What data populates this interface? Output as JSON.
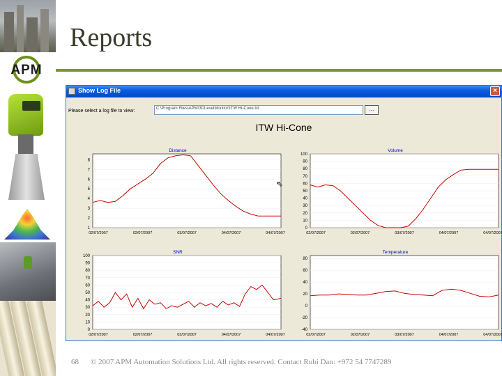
{
  "slide": {
    "title": "Reports",
    "page_number": "68",
    "footer": "© 2007 APM Automation Solutions Ltd. All rights reserved. Contact Rubi Dan: +972 54 7747289",
    "logo_text": "APM",
    "accent_color": "#7a9a25"
  },
  "window": {
    "title": "Show Log File",
    "prompt": "Please select a log file to view:",
    "file_path": "C:\\Program Files\\APM\\3DLevelMonitor\\ITW Hi-Cone.txt",
    "browse_label": "...",
    "close_label": "×",
    "chart_heading": "ITW Hi-Cone"
  },
  "chart_data": [
    {
      "type": "line",
      "title": "Distance",
      "color": "#cc0000",
      "x_ticks": [
        "02/07/2007",
        "02/07/2007",
        "03/07/2007",
        "04/07/2007",
        "04/07/2007"
      ],
      "y_ticks": [
        "1",
        "2",
        "3",
        "4",
        "5",
        "6",
        "7",
        "8"
      ],
      "ylim": [
        1,
        8.6
      ],
      "x": [
        0,
        0.04,
        0.08,
        0.12,
        0.16,
        0.2,
        0.24,
        0.28,
        0.32,
        0.36,
        0.4,
        0.44,
        0.48,
        0.52,
        0.56,
        0.6,
        0.64,
        0.68,
        0.72,
        0.76,
        0.8,
        0.84,
        0.88,
        0.92,
        0.96,
        1.0
      ],
      "y": [
        3.6,
        3.8,
        3.6,
        3.7,
        4.3,
        5.0,
        5.5,
        6.0,
        6.6,
        7.6,
        8.2,
        8.4,
        8.5,
        8.4,
        7.4,
        6.4,
        5.4,
        4.5,
        3.8,
        3.2,
        2.7,
        2.4,
        2.2,
        2.2,
        2.2,
        2.2
      ]
    },
    {
      "type": "line",
      "title": "Volume",
      "color": "#cc0000",
      "x_ticks": [
        "02/07/2007",
        "02/07/2007",
        "03/07/2007",
        "04/07/2007",
        "04/07/2007"
      ],
      "y_ticks": [
        "0",
        "10",
        "20",
        "30",
        "40",
        "50",
        "60",
        "70",
        "80",
        "90",
        "100"
      ],
      "ylim": [
        0,
        100
      ],
      "x": [
        0,
        0.04,
        0.08,
        0.12,
        0.16,
        0.2,
        0.24,
        0.28,
        0.32,
        0.36,
        0.4,
        0.44,
        0.48,
        0.52,
        0.56,
        0.6,
        0.64,
        0.68,
        0.72,
        0.76,
        0.8,
        0.84,
        0.88,
        0.92,
        0.96,
        1.0
      ],
      "y": [
        58,
        55,
        58,
        57,
        50,
        40,
        30,
        20,
        10,
        3,
        0,
        0,
        0,
        2,
        12,
        25,
        40,
        55,
        65,
        72,
        78,
        79,
        79,
        79,
        79,
        79
      ]
    },
    {
      "type": "line",
      "title": "SNR",
      "color": "#cc0000",
      "x_ticks": [
        "02/07/2007",
        "02/07/2007",
        "03/07/2007",
        "04/07/2007",
        "04/07/2007"
      ],
      "y_ticks": [
        "0",
        "10",
        "20",
        "30",
        "40",
        "50",
        "60",
        "70",
        "80",
        "90",
        "100"
      ],
      "ylim": [
        0,
        100
      ],
      "x": [
        0,
        0.03,
        0.06,
        0.09,
        0.12,
        0.15,
        0.18,
        0.21,
        0.24,
        0.27,
        0.3,
        0.33,
        0.36,
        0.39,
        0.42,
        0.45,
        0.48,
        0.51,
        0.54,
        0.57,
        0.6,
        0.63,
        0.66,
        0.69,
        0.72,
        0.75,
        0.78,
        0.81,
        0.84,
        0.87,
        0.9,
        0.93,
        0.96,
        1.0
      ],
      "y": [
        32,
        38,
        30,
        36,
        50,
        40,
        48,
        30,
        42,
        28,
        40,
        34,
        36,
        28,
        32,
        30,
        34,
        38,
        30,
        36,
        32,
        35,
        30,
        38,
        33,
        36,
        31,
        48,
        58,
        54,
        60,
        50,
        40,
        42
      ]
    },
    {
      "type": "line",
      "title": "Temperature",
      "color": "#cc0000",
      "x_ticks": [
        "02/07/2007",
        "02/07/2007",
        "03/07/2007",
        "04/07/2007",
        "04/07/2007"
      ],
      "y_ticks": [
        "-40",
        "-20",
        "0",
        "20",
        "40",
        "60",
        "80"
      ],
      "ylim": [
        -40,
        85
      ],
      "x": [
        0,
        0.05,
        0.1,
        0.15,
        0.2,
        0.25,
        0.3,
        0.35,
        0.4,
        0.45,
        0.5,
        0.55,
        0.6,
        0.65,
        0.7,
        0.75,
        0.8,
        0.85,
        0.9,
        0.95,
        1.0
      ],
      "y": [
        17,
        18,
        18,
        20,
        19,
        18,
        18,
        21,
        24,
        25,
        21,
        19,
        18,
        17,
        26,
        28,
        26,
        21,
        16,
        15,
        18
      ]
    }
  ]
}
